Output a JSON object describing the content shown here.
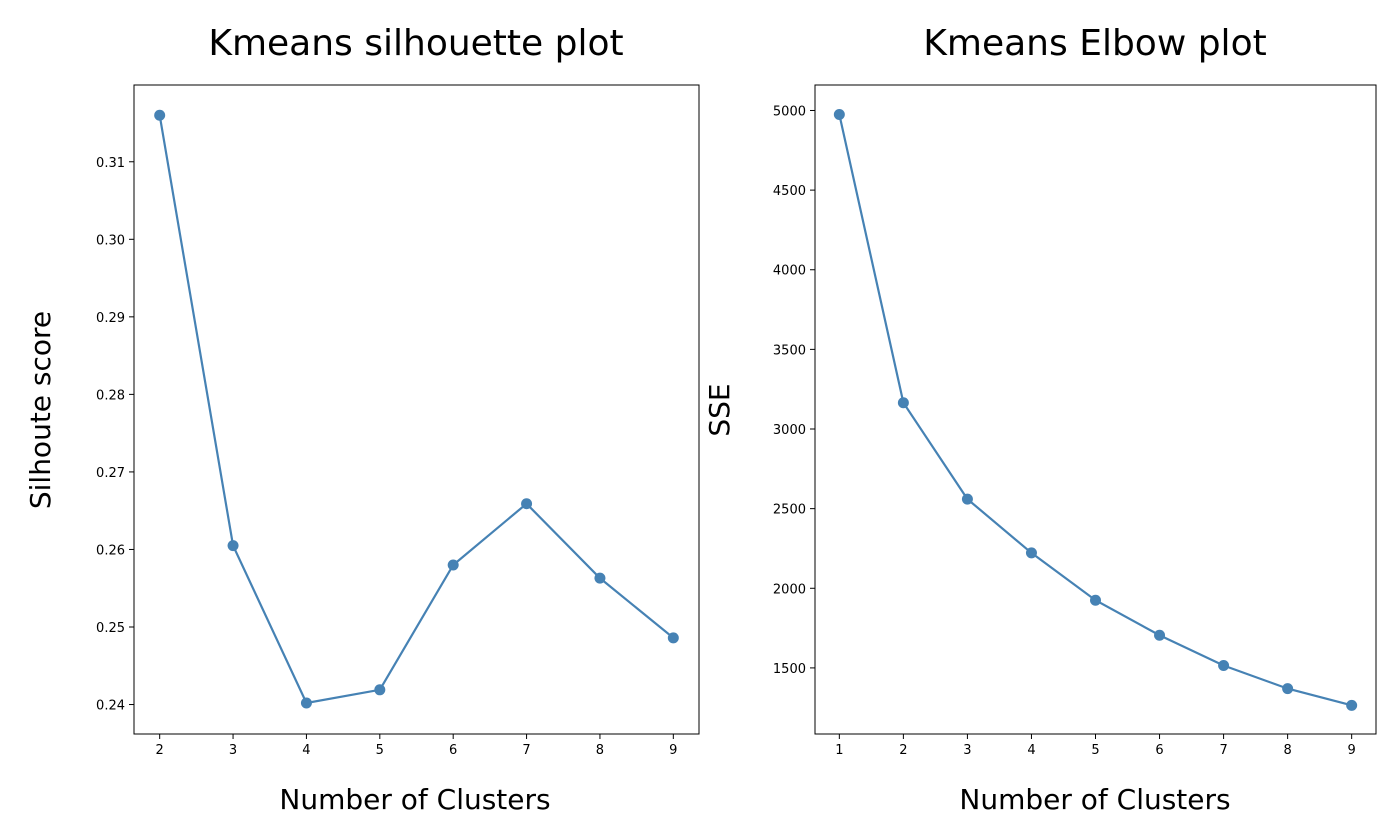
{
  "chart_data": [
    {
      "type": "line",
      "title": "Kmeans silhouette plot",
      "xlabel": "Number of Clusters",
      "ylabel": "Silhoute score",
      "x": [
        2,
        3,
        4,
        5,
        6,
        7,
        8,
        9
      ],
      "y": [
        0.316,
        0.2605,
        0.2402,
        0.2419,
        0.258,
        0.2659,
        0.2563,
        0.2486
      ],
      "xticks": [
        2,
        3,
        4,
        5,
        6,
        7,
        8,
        9
      ],
      "xtick_labels": [
        "2",
        "3",
        "4",
        "5",
        "6",
        "7",
        "8",
        "9"
      ],
      "yticks": [
        0.24,
        0.25,
        0.26,
        0.27,
        0.28,
        0.29,
        0.3,
        0.31
      ],
      "ytick_labels": [
        "0.24",
        "0.25",
        "0.26",
        "0.27",
        "0.28",
        "0.29",
        "0.30",
        "0.31"
      ],
      "xlim": [
        1.65,
        9.35
      ],
      "ylim": [
        0.2362,
        0.3199
      ],
      "grid": false,
      "marker": "circle",
      "color": "#4682b4"
    },
    {
      "type": "line",
      "title": "Kmeans Elbow plot",
      "xlabel": "Number of Clusters",
      "ylabel": "SSE",
      "x": [
        1,
        2,
        3,
        4,
        5,
        6,
        7,
        8,
        9
      ],
      "y": [
        4975,
        3165,
        2560,
        2222,
        1925,
        1705,
        1515,
        1370,
        1265
      ],
      "xticks": [
        1,
        2,
        3,
        4,
        5,
        6,
        7,
        8,
        9
      ],
      "xtick_labels": [
        "1",
        "2",
        "3",
        "4",
        "5",
        "6",
        "7",
        "8",
        "9"
      ],
      "yticks": [
        1500,
        2000,
        2500,
        3000,
        3500,
        4000,
        4500,
        5000
      ],
      "ytick_labels": [
        "1500",
        "2000",
        "2500",
        "3000",
        "3500",
        "4000",
        "4500",
        "5000"
      ],
      "xlim": [
        0.62,
        9.38
      ],
      "ylim": [
        1085,
        5160
      ],
      "grid": false,
      "marker": "circle",
      "color": "#4682b4"
    }
  ]
}
